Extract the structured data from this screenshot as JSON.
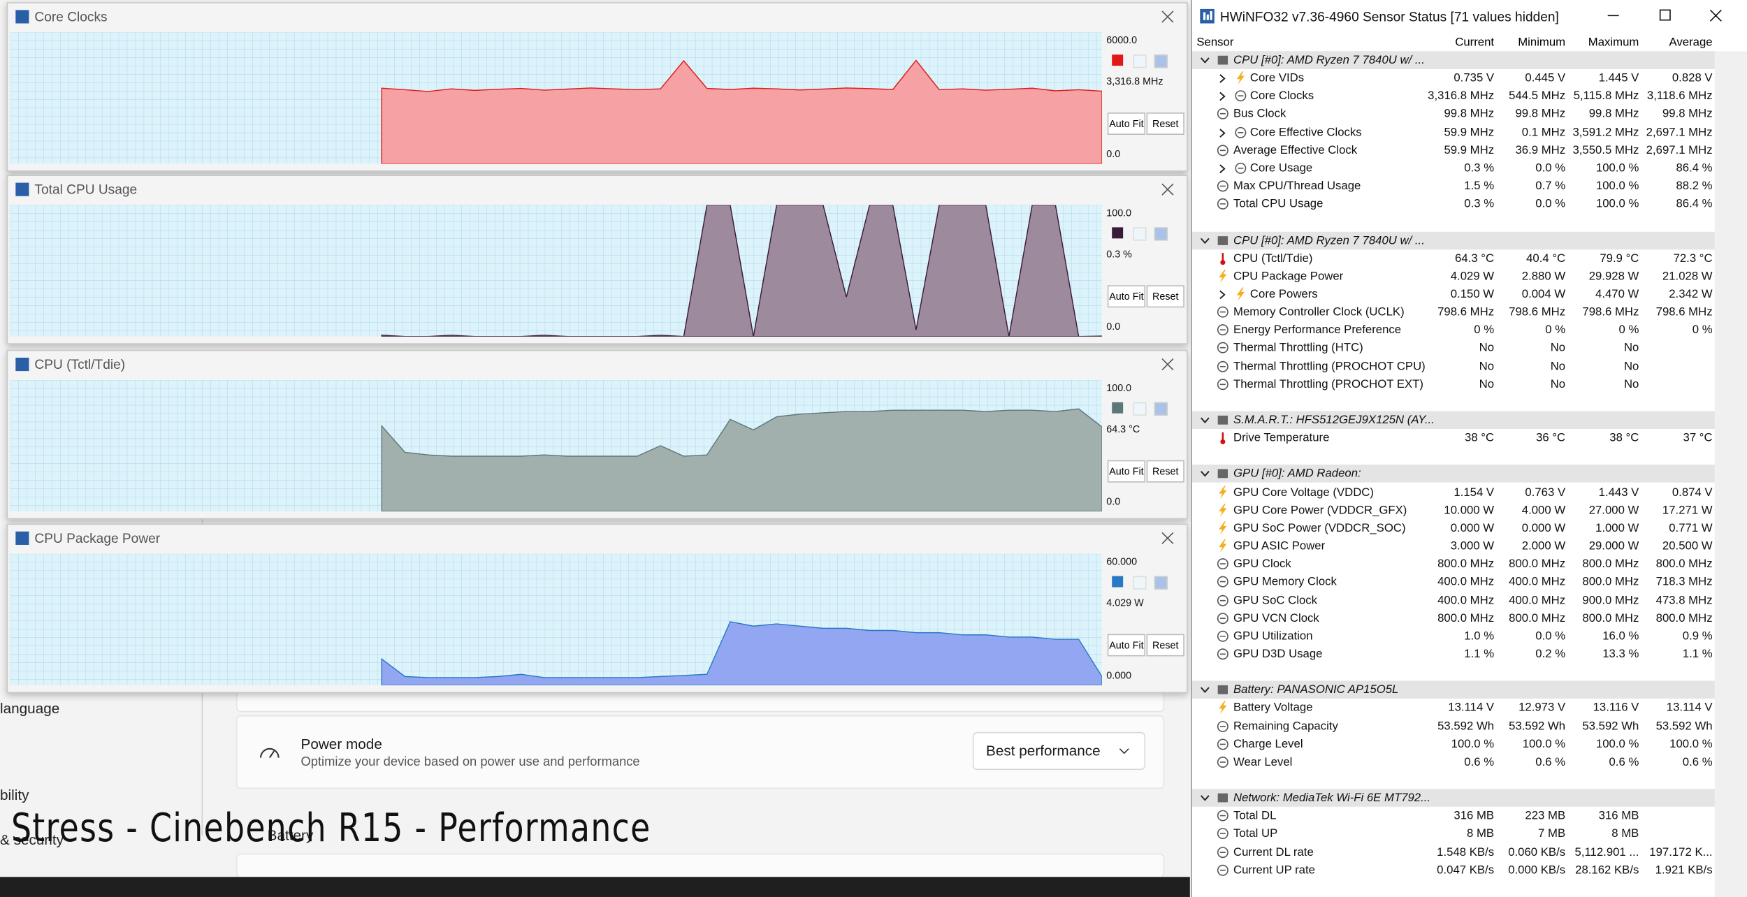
{
  "caption": "Stress - Cinebench R15 - Performance",
  "background": {
    "nav": [
      "language",
      "bility",
      "& security"
    ],
    "card": {
      "title": "Power mode",
      "subtitle": "Optimize your device based on power use and performance",
      "dropdown": "Best performance"
    },
    "partial": "Battery"
  },
  "graph_buttons": [
    "Auto Fit",
    "Reset"
  ],
  "graphs": [
    {
      "title": "Core Clocks",
      "scale_max": {
        "value": 6000,
        "label": "6000.0"
      },
      "scale_min": {
        "value": 0,
        "label": "0.0"
      },
      "current_label": "3,316.8 MHz",
      "color": "#e01818",
      "fill": "#f6a2a4",
      "values": [
        null,
        null,
        null,
        null,
        null,
        null,
        null,
        null,
        null,
        null,
        null,
        null,
        null,
        null,
        null,
        null,
        3450,
        3380,
        3300,
        3420,
        3350,
        3400,
        3440,
        3360,
        3410,
        3460,
        3420,
        3380,
        3420,
        4700,
        3440,
        3390,
        3450,
        3420,
        3370,
        3410,
        3460,
        3430,
        3390,
        4720,
        3380,
        3420,
        3360,
        3400,
        3450,
        3330,
        3380,
        3316.8
      ]
    },
    {
      "title": "Total CPU Usage",
      "scale_max": {
        "value": 100,
        "label": "100.0"
      },
      "scale_min": {
        "value": 0,
        "label": "0.0"
      },
      "current_label": "0.3 %",
      "color": "#3a1a3a",
      "fill": "#9e8a9d",
      "values": [
        null,
        null,
        null,
        null,
        null,
        null,
        null,
        null,
        null,
        null,
        null,
        null,
        null,
        null,
        null,
        null,
        1,
        0,
        0,
        1,
        0,
        0,
        0,
        1,
        0,
        0,
        0,
        0,
        1,
        0,
        100,
        100,
        0,
        100,
        100,
        100,
        30,
        100,
        100,
        5,
        100,
        100,
        100,
        0,
        100,
        100,
        0,
        0.3
      ]
    },
    {
      "title": "CPU (Tctl/Tdie)",
      "scale_max": {
        "value": 100,
        "label": "100.0"
      },
      "scale_min": {
        "value": 0,
        "label": "0.0"
      },
      "current_label": "64.3 °C",
      "color": "#5d7779",
      "fill": "#a2b0ad",
      "values": [
        null,
        null,
        null,
        null,
        null,
        null,
        null,
        null,
        null,
        null,
        null,
        null,
        null,
        null,
        null,
        null,
        65,
        45,
        43,
        42,
        42,
        42,
        42,
        43,
        42,
        42,
        42,
        42,
        50,
        42,
        43,
        70,
        62,
        72,
        74,
        75,
        76,
        76,
        77,
        77,
        77,
        77,
        76,
        77,
        77,
        76,
        78,
        64.3
      ]
    },
    {
      "title": "CPU Package Power",
      "scale_max": {
        "value": 60,
        "label": "60.000"
      },
      "scale_min": {
        "value": 0,
        "label": "0.000"
      },
      "current_label": "4.029 W",
      "color": "#2a78c4",
      "fill": "#93a6f1",
      "values": [
        null,
        null,
        null,
        null,
        null,
        null,
        null,
        null,
        null,
        null,
        null,
        null,
        null,
        null,
        null,
        null,
        12,
        4,
        3.5,
        3.5,
        3.5,
        4,
        5,
        3.5,
        3.5,
        3.5,
        3.5,
        3.5,
        4,
        4.5,
        5,
        29,
        27,
        28,
        27,
        26,
        26,
        25,
        25,
        24,
        24,
        23,
        23,
        22,
        22,
        21,
        21,
        4.029
      ]
    }
  ],
  "hwinfo": {
    "title": "HWiNFO32 v7.36-4960 Sensor Status [71 values hidden]",
    "columns": [
      "Sensor",
      "Current",
      "Minimum",
      "Maximum",
      "Average"
    ],
    "groups": [
      {
        "title": "CPU [#0]: AMD Ryzen 7 7840U w/ ...",
        "rows": [
          {
            "label": "Core VIDs",
            "icon": "bolt",
            "expandable": true,
            "cells": [
              "0.735 V",
              "0.445 V",
              "1.445 V",
              "0.828 V"
            ]
          },
          {
            "label": "Core Clocks",
            "icon": "gauge",
            "expandable": true,
            "cells": [
              "3,316.8 MHz",
              "544.5 MHz",
              "5,115.8 MHz",
              "3,118.6 MHz"
            ]
          },
          {
            "label": "Bus Clock",
            "icon": "gauge",
            "cells": [
              "99.8 MHz",
              "99.8 MHz",
              "99.8 MHz",
              "99.8 MHz"
            ]
          },
          {
            "label": "Core Effective Clocks",
            "icon": "gauge",
            "expandable": true,
            "cells": [
              "59.9 MHz",
              "0.1 MHz",
              "3,591.2 MHz",
              "2,697.1 MHz"
            ]
          },
          {
            "label": "Average Effective Clock",
            "icon": "gauge",
            "cells": [
              "59.9 MHz",
              "36.9 MHz",
              "3,550.5 MHz",
              "2,697.1 MHz"
            ]
          },
          {
            "label": "Core Usage",
            "icon": "gauge",
            "expandable": true,
            "cells": [
              "0.3 %",
              "0.0 %",
              "100.0 %",
              "86.4 %"
            ]
          },
          {
            "label": "Max CPU/Thread Usage",
            "icon": "gauge",
            "cells": [
              "1.5 %",
              "0.7 %",
              "100.0 %",
              "88.2 %"
            ]
          },
          {
            "label": "Total CPU Usage",
            "icon": "gauge",
            "cells": [
              "0.3 %",
              "0.0 %",
              "100.0 %",
              "86.4 %"
            ]
          }
        ]
      },
      {
        "title": "CPU [#0]: AMD Ryzen 7 7840U w/ ...",
        "rows": [
          {
            "label": "CPU (Tctl/Tdie)",
            "icon": "thermo",
            "cells": [
              "64.3 °C",
              "40.4 °C",
              "79.9 °C",
              "72.3 °C"
            ]
          },
          {
            "label": "CPU Package Power",
            "icon": "bolt",
            "cells": [
              "4.029 W",
              "2.880 W",
              "29.928 W",
              "21.028 W"
            ]
          },
          {
            "label": "Core Powers",
            "icon": "bolt",
            "expandable": true,
            "cells": [
              "0.150 W",
              "0.004 W",
              "4.470 W",
              "2.342 W"
            ]
          },
          {
            "label": "Memory Controller Clock (UCLK)",
            "icon": "gauge",
            "cells": [
              "798.6 MHz",
              "798.6 MHz",
              "798.6 MHz",
              "798.6 MHz"
            ]
          },
          {
            "label": "Energy Performance Preference",
            "icon": "gauge",
            "cells": [
              "0 %",
              "0 %",
              "0 %",
              "0 %"
            ]
          },
          {
            "label": "Thermal Throttling (HTC)",
            "icon": "gauge",
            "cells": [
              "No",
              "No",
              "No"
            ]
          },
          {
            "label": "Thermal Throttling (PROCHOT CPU)",
            "icon": "gauge",
            "cells": [
              "No",
              "No",
              "No"
            ]
          },
          {
            "label": "Thermal Throttling (PROCHOT EXT)",
            "icon": "gauge",
            "cells": [
              "No",
              "No",
              "No"
            ]
          }
        ]
      },
      {
        "title": "S.M.A.R.T.: HFS512GEJ9X125N (AY...",
        "rows": [
          {
            "label": "Drive Temperature",
            "icon": "thermo",
            "cells": [
              "38 °C",
              "36 °C",
              "38 °C",
              "37 °C"
            ]
          }
        ]
      },
      {
        "title": "GPU [#0]: AMD Radeon:",
        "rows": [
          {
            "label": "GPU Core Voltage (VDDC)",
            "icon": "bolt",
            "cells": [
              "1.154 V",
              "0.763 V",
              "1.443 V",
              "0.874 V"
            ]
          },
          {
            "label": "GPU Core Power (VDDCR_GFX)",
            "icon": "bolt",
            "cells": [
              "10.000 W",
              "4.000 W",
              "27.000 W",
              "17.271 W"
            ]
          },
          {
            "label": "GPU SoC Power (VDDCR_SOC)",
            "icon": "bolt",
            "cells": [
              "0.000 W",
              "0.000 W",
              "1.000 W",
              "0.771 W"
            ]
          },
          {
            "label": "GPU ASIC Power",
            "icon": "bolt",
            "cells": [
              "3.000 W",
              "2.000 W",
              "29.000 W",
              "20.500 W"
            ]
          },
          {
            "label": "GPU Clock",
            "icon": "gauge",
            "cells": [
              "800.0 MHz",
              "800.0 MHz",
              "800.0 MHz",
              "800.0 MHz"
            ]
          },
          {
            "label": "GPU Memory Clock",
            "icon": "gauge",
            "cells": [
              "400.0 MHz",
              "400.0 MHz",
              "800.0 MHz",
              "718.3 MHz"
            ]
          },
          {
            "label": "GPU SoC Clock",
            "icon": "gauge",
            "cells": [
              "400.0 MHz",
              "400.0 MHz",
              "900.0 MHz",
              "473.8 MHz"
            ]
          },
          {
            "label": "GPU VCN Clock",
            "icon": "gauge",
            "cells": [
              "800.0 MHz",
              "800.0 MHz",
              "800.0 MHz",
              "800.0 MHz"
            ]
          },
          {
            "label": "GPU Utilization",
            "icon": "gauge",
            "cells": [
              "1.0 %",
              "0.0 %",
              "16.0 %",
              "0.9 %"
            ]
          },
          {
            "label": "GPU D3D Usage",
            "icon": "gauge",
            "cells": [
              "1.1 %",
              "0.2 %",
              "13.3 %",
              "1.1 %"
            ]
          }
        ]
      },
      {
        "title": "Battery: PANASONIC AP15O5L",
        "rows": [
          {
            "label": "Battery Voltage",
            "icon": "bolt",
            "cells": [
              "13.114 V",
              "12.973 V",
              "13.116 V",
              "13.114 V"
            ]
          },
          {
            "label": "Remaining Capacity",
            "icon": "gauge",
            "cells": [
              "53.592 Wh",
              "53.592 Wh",
              "53.592 Wh",
              "53.592 Wh"
            ]
          },
          {
            "label": "Charge Level",
            "icon": "gauge",
            "cells": [
              "100.0 %",
              "100.0 %",
              "100.0 %",
              "100.0 %"
            ]
          },
          {
            "label": "Wear Level",
            "icon": "gauge",
            "cells": [
              "0.6 %",
              "0.6 %",
              "0.6 %",
              "0.6 %"
            ]
          }
        ]
      },
      {
        "title": "Network: MediaTek Wi-Fi 6E MT792...",
        "rows": [
          {
            "label": "Total DL",
            "icon": "gauge",
            "cells": [
              "316 MB",
              "223 MB",
              "316 MB"
            ]
          },
          {
            "label": "Total UP",
            "icon": "gauge",
            "cells": [
              "8 MB",
              "7 MB",
              "8 MB"
            ]
          },
          {
            "label": "Current DL rate",
            "icon": "gauge",
            "cells": [
              "1.548 KB/s",
              "0.060 KB/s",
              "5,112.901 ...",
              "197.172 K..."
            ]
          },
          {
            "label": "Current UP rate",
            "icon": "gauge",
            "cells": [
              "0.047 KB/s",
              "0.000 KB/s",
              "28.162 KB/s",
              "1.921 KB/s"
            ]
          }
        ]
      }
    ]
  }
}
